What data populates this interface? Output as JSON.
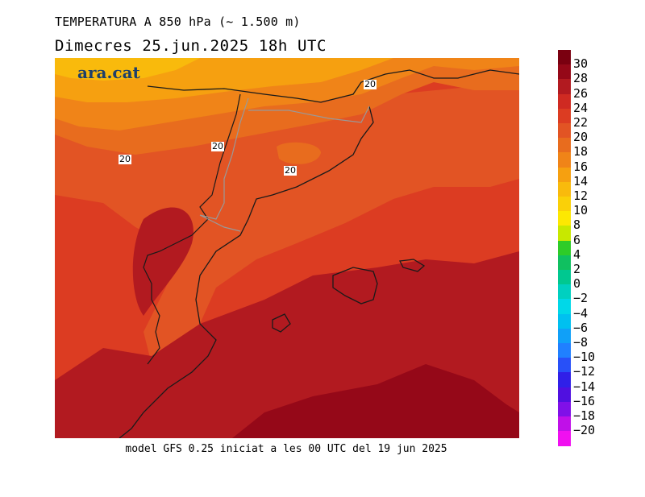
{
  "header": {
    "title": "TEMPERATURA A 850 hPa (~ 1.500 m)",
    "date_line": "Dimecres  25.jun.2025 18h UTC"
  },
  "footer": {
    "model_info": "model GFS 0.25 iniciat a les 00 UTC del 19 jun 2025"
  },
  "logo": {
    "text": "ara.cat"
  },
  "contour_labels": [
    "20",
    "20",
    "20",
    "20"
  ],
  "legend": {
    "items": [
      {
        "label": "30",
        "color": "#7a0010"
      },
      {
        "label": "28",
        "color": "#950818"
      },
      {
        "label": "26",
        "color": "#b21a20"
      },
      {
        "label": "24",
        "color": "#cf2a22"
      },
      {
        "label": "22",
        "color": "#dc3c22"
      },
      {
        "label": "20",
        "color": "#e25424"
      },
      {
        "label": "18",
        "color": "#e86c1e"
      },
      {
        "label": "16",
        "color": "#f08418"
      },
      {
        "label": "14",
        "color": "#f6a010"
      },
      {
        "label": "12",
        "color": "#f9ba0c"
      },
      {
        "label": "10",
        "color": "#fad008"
      },
      {
        "label": "8",
        "color": "#fde802"
      },
      {
        "label": "6",
        "color": "#c8e800"
      },
      {
        "label": "4",
        "color": "#2ecc28"
      },
      {
        "label": "2",
        "color": "#10c060"
      },
      {
        "label": "0",
        "color": "#00c890"
      },
      {
        "label": "-2",
        "color": "#00d0c0"
      },
      {
        "label": "-4",
        "color": "#00d8e8"
      },
      {
        "label": "-6",
        "color": "#00c0f0"
      },
      {
        "label": "-8",
        "color": "#10a0f8"
      },
      {
        "label": "-10",
        "color": "#2080ff"
      },
      {
        "label": "-12",
        "color": "#2850f8"
      },
      {
        "label": "-14",
        "color": "#3020e8"
      },
      {
        "label": "-16",
        "color": "#5010e0"
      },
      {
        "label": "-18",
        "color": "#8010e8"
      },
      {
        "label": "-20",
        "color": "#c010e8"
      },
      {
        "label": "",
        "color": "#f010f0"
      }
    ]
  }
}
